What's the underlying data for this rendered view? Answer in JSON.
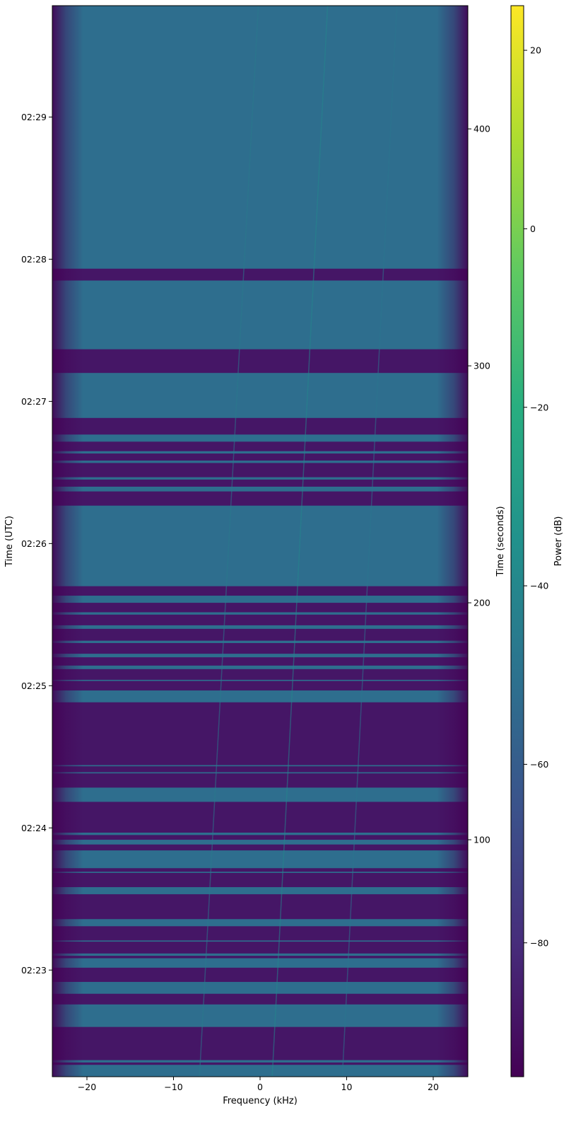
{
  "chart_data": {
    "type": "heatmap",
    "title": "",
    "xlabel": "Frequency (kHz)",
    "ylabel_left": "Time (UTC)",
    "ylabel_right": "Time (seconds)",
    "colorbar_label": "Power (dB)",
    "colormap": "viridis",
    "xlim": [
      -24,
      24
    ],
    "x_ticks": [
      -20,
      -10,
      0,
      10,
      20
    ],
    "x_tick_labels": [
      "−20",
      "−10",
      "0",
      "10",
      "20"
    ],
    "time_seconds_range": [
      0,
      452
    ],
    "right_ticks": [
      100,
      200,
      300,
      400
    ],
    "right_tick_labels": [
      "100",
      "200",
      "300",
      "400"
    ],
    "utc_start": "02:22:15",
    "utc_ticks": [
      "02:23",
      "02:24",
      "02:25",
      "02:26",
      "02:27",
      "02:28",
      "02:29"
    ],
    "colorbar_range": [
      -95,
      25
    ],
    "colorbar_ticks": [
      -80,
      -60,
      -40,
      -20,
      0,
      20
    ],
    "colorbar_tick_labels": [
      "−80",
      "−60",
      "−40",
      "−20",
      "0",
      "20"
    ],
    "active_level_db": -52,
    "quiet_level_db": -88,
    "quiet_intervals_seconds": [
      [
        5,
        6
      ],
      [
        7,
        21
      ],
      [
        30.5,
        35
      ],
      [
        40,
        46
      ],
      [
        50,
        51
      ],
      [
        52,
        57
      ],
      [
        57.5,
        63.5
      ],
      [
        66.5,
        77
      ],
      [
        80,
        86
      ],
      [
        86.5,
        88
      ],
      [
        95.5,
        98
      ],
      [
        100,
        102
      ],
      [
        103,
        116
      ],
      [
        122,
        128
      ],
      [
        128.5,
        131
      ],
      [
        131.5,
        141
      ],
      [
        140.8,
        158
      ],
      [
        163,
        167
      ],
      [
        167.5,
        172
      ],
      [
        173.5,
        177
      ],
      [
        178.5,
        183
      ],
      [
        184,
        189
      ],
      [
        190.5,
        195
      ],
      [
        196,
        200
      ],
      [
        203,
        207
      ],
      [
        241,
        247
      ],
      [
        249,
        252
      ],
      [
        253,
        259
      ],
      [
        260,
        263
      ],
      [
        264,
        268
      ],
      [
        271,
        278
      ],
      [
        297,
        307
      ],
      [
        336,
        341
      ]
    ],
    "tones": [
      {
        "freq_start_khz": 1.4,
        "freq_end_khz": 7.8,
        "peak_db": -40
      },
      {
        "freq_start_khz": -7,
        "freq_end_khz": -0.2,
        "peak_db": -46
      },
      {
        "freq_start_khz": 9.5,
        "freq_end_khz": 15.8,
        "peak_db": -48
      }
    ]
  }
}
